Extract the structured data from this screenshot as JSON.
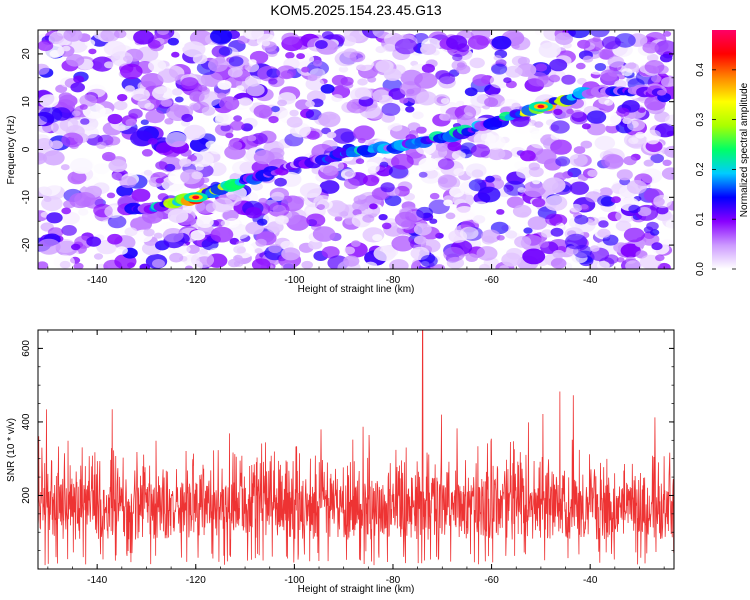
{
  "chart_data": [
    {
      "type": "heatmap",
      "title": "KOM5.2025.154.23.45.G13",
      "xlabel": "Height of straight line (km)",
      "ylabel": "Frequency (Hz)",
      "xlim": [
        -152,
        -23
      ],
      "ylim": [
        -25,
        25
      ],
      "xticks": [
        "-140",
        "-120",
        "-100",
        "-80",
        "-60",
        "-40"
      ],
      "yticks": [
        "-20",
        "-10",
        "0",
        "10",
        "20"
      ],
      "colorbar": {
        "label": "Normalized spectral amplitude",
        "range": [
          0,
          0.48
        ],
        "ticks": [
          "0.0",
          "0.1",
          "0.2",
          "0.3",
          "0.4"
        ],
        "colors": [
          "#ffffff",
          "#cc99ff",
          "#8800ff",
          "#0000ff",
          "#00ccff",
          "#00ff66",
          "#aaff00",
          "#ffff00",
          "#ff8800",
          "#ff0000",
          "#ff0066"
        ]
      },
      "ridge": {
        "description_points_x": [
          -130,
          -120,
          -110,
          -100,
          -90,
          -80,
          -70,
          -60,
          -50,
          -40
        ],
        "description_points_y": [
          -12.5,
          -10,
          -6.5,
          -3.5,
          -1,
          0.5,
          2.5,
          5.5,
          9,
          12
        ],
        "peak_amplitudes": [
          0.15,
          0.45,
          0.2,
          0.1,
          0.22,
          0.18,
          0.25,
          0.2,
          0.45,
          0.15
        ]
      }
    },
    {
      "type": "line",
      "xlabel": "Height of straight line (km)",
      "ylabel": "SNR (10 * v/v)",
      "xlim": [
        -152,
        -23
      ],
      "ylim": [
        0,
        650
      ],
      "xticks": [
        "-140",
        "-120",
        "-100",
        "-80",
        "-60",
        "-40"
      ],
      "yticks": [
        "200",
        "400",
        "600"
      ],
      "series": [
        {
          "color": "#ee3333",
          "typical_range": [
            60,
            480
          ],
          "peak": {
            "x": -74,
            "y": 650
          }
        }
      ]
    }
  ]
}
